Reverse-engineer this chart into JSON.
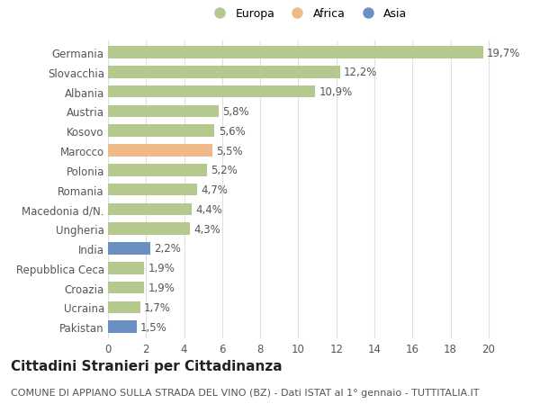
{
  "categories": [
    "Germania",
    "Slovacchia",
    "Albania",
    "Austria",
    "Kosovo",
    "Marocco",
    "Polonia",
    "Romania",
    "Macedonia d/N.",
    "Ungheria",
    "India",
    "Repubblica Ceca",
    "Croazia",
    "Ucraina",
    "Pakistan"
  ],
  "values": [
    19.7,
    12.2,
    10.9,
    5.8,
    5.6,
    5.5,
    5.2,
    4.7,
    4.4,
    4.3,
    2.2,
    1.9,
    1.9,
    1.7,
    1.5
  ],
  "labels": [
    "19,7%",
    "12,2%",
    "10,9%",
    "5,8%",
    "5,6%",
    "5,5%",
    "5,2%",
    "4,7%",
    "4,4%",
    "4,3%",
    "2,2%",
    "1,9%",
    "1,9%",
    "1,7%",
    "1,5%"
  ],
  "colors": [
    "#b5c98e",
    "#b5c98e",
    "#b5c98e",
    "#b5c98e",
    "#b5c98e",
    "#f0b989",
    "#b5c98e",
    "#b5c98e",
    "#b5c98e",
    "#b5c98e",
    "#6b8fc2",
    "#b5c98e",
    "#b5c98e",
    "#b5c98e",
    "#6b8fc2"
  ],
  "legend_labels": [
    "Europa",
    "Africa",
    "Asia"
  ],
  "legend_colors": [
    "#b5c98e",
    "#f0b989",
    "#6b8fc2"
  ],
  "title": "Cittadini Stranieri per Cittadinanza",
  "subtitle": "COMUNE DI APPIANO SULLA STRADA DEL VINO (BZ) - Dati ISTAT al 1° gennaio - TUTTITALIA.IT",
  "xlim": [
    0,
    21
  ],
  "xticks": [
    0,
    2,
    4,
    6,
    8,
    10,
    12,
    14,
    16,
    18,
    20
  ],
  "background_color": "#ffffff",
  "grid_color": "#e0e0e0",
  "bar_height": 0.62,
  "label_fontsize": 8.5,
  "tick_fontsize": 8.5,
  "title_fontsize": 11,
  "subtitle_fontsize": 8
}
